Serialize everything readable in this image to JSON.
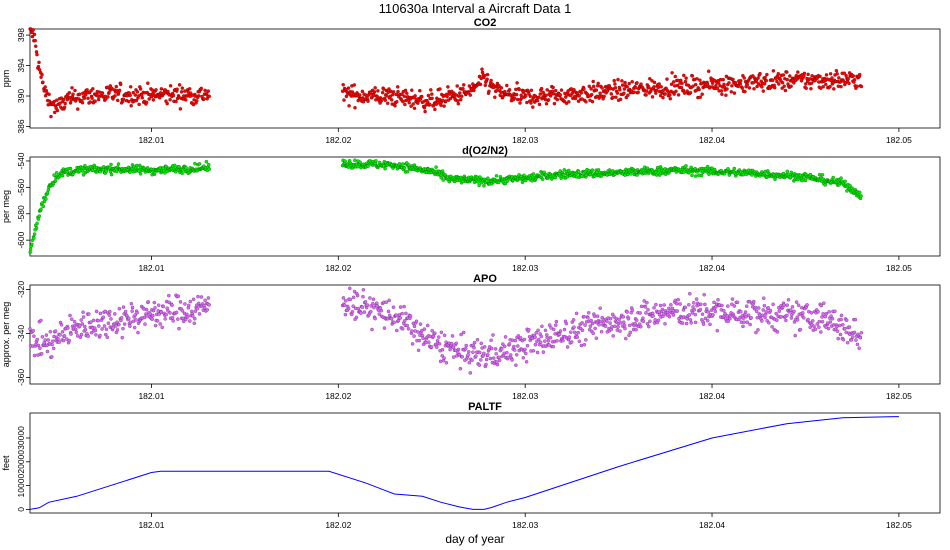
{
  "title": "110630a   Interval a Aircraft Data 1",
  "xlabel": "day of year",
  "colors": {
    "co2": "#ff0000",
    "o2n2": "#00ee00",
    "apo": "#e066ff",
    "paltf": "#0000ff"
  },
  "chart_data": [
    {
      "type": "scatter",
      "title": "CO2",
      "ylabel": "ppm",
      "xlim": [
        182.0035,
        182.0522
      ],
      "ylim": [
        385.8,
        398.8
      ],
      "xticks": [
        182.01,
        182.02,
        182.03,
        182.04,
        182.05
      ],
      "xtick_labels": [
        "182.01",
        "182.02",
        "182.03",
        "182.04",
        "182.05"
      ],
      "yticks": [
        386,
        390,
        394,
        398
      ],
      "ytick_labels": [
        "386",
        "390",
        "394",
        "398"
      ],
      "color": "#ff0000",
      "x_range": [
        182.0035,
        182.048
      ],
      "gap": [
        182.0131,
        182.0202
      ],
      "profile": [
        [
          182.0035,
          398.5
        ],
        [
          182.0037,
          398.0
        ],
        [
          182.004,
          393.5
        ],
        [
          182.0043,
          390.5
        ],
        [
          182.0046,
          389.0
        ],
        [
          182.005,
          388.5
        ],
        [
          182.0055,
          389.5
        ],
        [
          182.0065,
          390.0
        ],
        [
          182.008,
          390.2
        ],
        [
          182.01,
          390.1
        ],
        [
          182.0131,
          390.2
        ],
        [
          182.0202,
          390.2
        ],
        [
          182.023,
          389.9
        ],
        [
          182.025,
          389.3
        ],
        [
          182.027,
          390.5
        ],
        [
          182.0278,
          392.2
        ],
        [
          182.0285,
          390.5
        ],
        [
          182.03,
          389.8
        ],
        [
          182.033,
          390.3
        ],
        [
          182.036,
          390.9
        ],
        [
          182.04,
          391.5
        ],
        [
          182.044,
          392.0
        ],
        [
          182.048,
          392.2
        ]
      ],
      "noise": 0.9
    },
    {
      "type": "scatter",
      "title": "d(O2/N2)",
      "ylabel": "per meg",
      "xlim": [
        182.0035,
        182.0522
      ],
      "ylim": [
        -612,
        -537
      ],
      "xticks": [
        182.01,
        182.02,
        182.03,
        182.04,
        182.05
      ],
      "xtick_labels": [
        "182.01",
        "182.02",
        "182.03",
        "182.04",
        "182.05"
      ],
      "yticks": [
        -600,
        -580,
        -560,
        -540
      ],
      "ytick_labels": [
        "-600",
        "-580",
        "-560",
        "-540"
      ],
      "color": "#00ee00",
      "x_range": [
        182.0035,
        182.048
      ],
      "gap": [
        182.0131,
        182.0202
      ],
      "profile": [
        [
          182.0035,
          -610.0
        ],
        [
          182.004,
          -580.0
        ],
        [
          182.0045,
          -560.0
        ],
        [
          182.005,
          -550.0
        ],
        [
          182.006,
          -547.0
        ],
        [
          182.008,
          -546.0
        ],
        [
          182.01,
          -547.0
        ],
        [
          182.0131,
          -545.0
        ],
        [
          182.0202,
          -542.0
        ],
        [
          182.023,
          -543.0
        ],
        [
          182.025,
          -548.0
        ],
        [
          182.026,
          -554.0
        ],
        [
          182.028,
          -555.0
        ],
        [
          182.03,
          -553.0
        ],
        [
          182.032,
          -550.0
        ],
        [
          182.035,
          -549.0
        ],
        [
          182.038,
          -547.0
        ],
        [
          182.042,
          -549.0
        ],
        [
          182.045,
          -552.0
        ],
        [
          182.047,
          -557.0
        ],
        [
          182.048,
          -566.0
        ]
      ],
      "noise": 2.2
    },
    {
      "type": "scatter",
      "title": "APO",
      "ylabel": "approx. per meg",
      "xlim": [
        182.0035,
        182.0522
      ],
      "ylim": [
        -363,
        -318
      ],
      "xticks": [
        182.01,
        182.02,
        182.03,
        182.04,
        182.05
      ],
      "xtick_labels": [
        "182.01",
        "182.02",
        "182.03",
        "182.04",
        "182.05"
      ],
      "yticks": [
        -360,
        -340,
        -320
      ],
      "ytick_labels": [
        "-360",
        "-340",
        "-320"
      ],
      "color": "#e066ff",
      "x_range": [
        182.0035,
        182.048
      ],
      "gap": [
        182.0131,
        182.0202
      ],
      "profile": [
        [
          182.0035,
          -343.0
        ],
        [
          182.0045,
          -345.0
        ],
        [
          182.006,
          -337.0
        ],
        [
          182.008,
          -334.0
        ],
        [
          182.01,
          -331.0
        ],
        [
          182.0131,
          -328.0
        ],
        [
          182.0202,
          -325.0
        ],
        [
          182.023,
          -332.0
        ],
        [
          182.025,
          -344.0
        ],
        [
          182.027,
          -350.0
        ],
        [
          182.029,
          -348.0
        ],
        [
          182.032,
          -340.0
        ],
        [
          182.035,
          -334.0
        ],
        [
          182.038,
          -330.0
        ],
        [
          182.042,
          -331.0
        ],
        [
          182.046,
          -333.0
        ],
        [
          182.048,
          -342.0
        ]
      ],
      "noise": 5.0
    },
    {
      "type": "line",
      "title": "PALTF",
      "ylabel": "feet",
      "xlim": [
        182.0035,
        182.0522
      ],
      "ylim": [
        -1500,
        40500
      ],
      "xticks": [
        182.01,
        182.02,
        182.03,
        182.04,
        182.05
      ],
      "xtick_labels": [
        "182.01",
        "182.02",
        "182.03",
        "182.04",
        "182.05"
      ],
      "yticks": [
        0,
        10000,
        20000,
        30000
      ],
      "ytick_labels": [
        "0",
        "10000",
        "20000",
        "30000"
      ],
      "color": "#0000ff",
      "x": [
        182.0035,
        182.004,
        182.0045,
        182.006,
        182.01,
        182.0105,
        182.0195,
        182.0215,
        182.023,
        182.0245,
        182.0255,
        182.0265,
        182.0272,
        182.0278,
        182.0282,
        182.029,
        182.03,
        182.035,
        182.04,
        182.044,
        182.047,
        182.05
      ],
      "y": [
        0,
        700,
        3000,
        5500,
        15500,
        16000,
        16000,
        11000,
        6500,
        5500,
        3000,
        1000,
        0,
        0,
        800,
        3000,
        5000,
        18000,
        30000,
        36000,
        38500,
        39000
      ]
    }
  ]
}
